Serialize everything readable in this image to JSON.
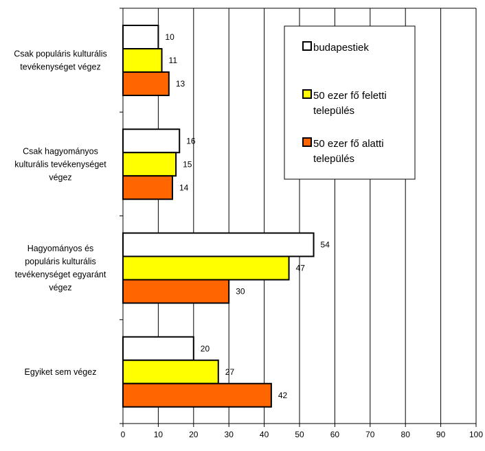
{
  "chart_data": {
    "type": "bar",
    "orientation": "horizontal",
    "categories": [
      [
        "Csak populáris kulturális",
        "tevékenységet végez"
      ],
      [
        "Csak hagyományos",
        "kulturális tevékenységet",
        "végez"
      ],
      [
        "Hagyományos és",
        "populáris kulturális",
        "tevékenységet egyaránt",
        "végez"
      ],
      [
        "Egyiket sem végez"
      ]
    ],
    "series": [
      {
        "name": "budapestiek",
        "values": [
          10,
          16,
          54,
          20
        ],
        "color": "#ffffff"
      },
      {
        "name": "50 ezer fő feletti település",
        "legend_lines": [
          "50 ezer fő feletti",
          "település"
        ],
        "values": [
          11,
          15,
          47,
          27
        ],
        "color": "#ffff00"
      },
      {
        "name": "50 ezer fő alatti település",
        "legend_lines": [
          "50 ezer fő alatti",
          "település"
        ],
        "values": [
          13,
          14,
          30,
          42
        ],
        "color": "#ff6600"
      }
    ],
    "xlim": [
      0,
      100
    ],
    "xticks": [
      0,
      10,
      20,
      30,
      40,
      50,
      60,
      70,
      80,
      90,
      100
    ],
    "grid": "vertical",
    "legend_position": "top-right",
    "title": "",
    "xlabel": "",
    "ylabel": ""
  }
}
